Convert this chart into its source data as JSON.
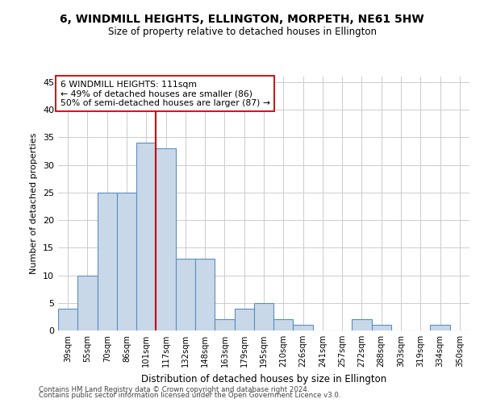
{
  "title": "6, WINDMILL HEIGHTS, ELLINGTON, MORPETH, NE61 5HW",
  "subtitle": "Size of property relative to detached houses in Ellington",
  "xlabel": "Distribution of detached houses by size in Ellington",
  "ylabel": "Number of detached properties",
  "bar_labels": [
    "39sqm",
    "55sqm",
    "70sqm",
    "86sqm",
    "101sqm",
    "117sqm",
    "132sqm",
    "148sqm",
    "163sqm",
    "179sqm",
    "195sqm",
    "210sqm",
    "226sqm",
    "241sqm",
    "257sqm",
    "272sqm",
    "288sqm",
    "303sqm",
    "319sqm",
    "334sqm",
    "350sqm"
  ],
  "bar_values": [
    4,
    10,
    25,
    25,
    34,
    33,
    13,
    13,
    2,
    4,
    5,
    2,
    1,
    0,
    0,
    2,
    1,
    0,
    0,
    1,
    0
  ],
  "bar_color": "#c8d8e8",
  "bar_edge_color": "#5a8fc0",
  "vline_x": 4.5,
  "vline_color": "#cc0000",
  "annotation_line1": "6 WINDMILL HEIGHTS: 111sqm",
  "annotation_line2": "← 49% of detached houses are smaller (86)",
  "annotation_line3": "50% of semi-detached houses are larger (87) →",
  "annotation_box_color": "#ffffff",
  "annotation_box_edge": "#cc0000",
  "ylim": [
    0,
    46
  ],
  "yticks": [
    0,
    5,
    10,
    15,
    20,
    25,
    30,
    35,
    40,
    45
  ],
  "footer_line1": "Contains HM Land Registry data © Crown copyright and database right 2024.",
  "footer_line2": "Contains public sector information licensed under the Open Government Licence v3.0.",
  "background_color": "#ffffff",
  "grid_color": "#cccccc"
}
